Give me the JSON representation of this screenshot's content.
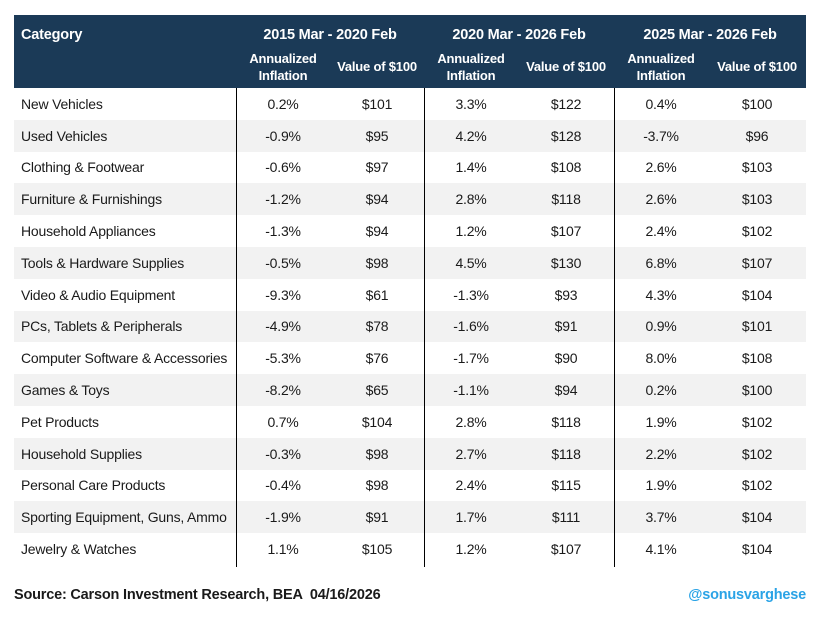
{
  "chart_data": {
    "type": "table",
    "header": {
      "category": "Category",
      "inflation_label": "Annualized Inflation",
      "value_label": "Value of $100"
    },
    "column_group_labels": [
      "2015 Mar - 2020 Feb",
      "2020 Mar - 2026 Feb",
      "2025 Mar - 2026 Feb"
    ],
    "sub_columns": [
      "Annualized Inflation",
      "Value of $100"
    ],
    "rows": [
      {
        "category": "New Vehicles",
        "values": [
          "0.2%",
          "$101",
          "3.3%",
          "$122",
          "0.4%",
          "$100"
        ]
      },
      {
        "category": "Used Vehicles",
        "values": [
          "-0.9%",
          "$95",
          "4.2%",
          "$128",
          "-3.7%",
          "$96"
        ]
      },
      {
        "category": "Clothing & Footwear",
        "values": [
          "-0.6%",
          "$97",
          "1.4%",
          "$108",
          "2.6%",
          "$103"
        ]
      },
      {
        "category": "Furniture & Furnishings",
        "values": [
          "-1.2%",
          "$94",
          "2.8%",
          "$118",
          "2.6%",
          "$103"
        ]
      },
      {
        "category": "Household Appliances",
        "values": [
          "-1.3%",
          "$94",
          "1.2%",
          "$107",
          "2.4%",
          "$102"
        ]
      },
      {
        "category": "Tools & Hardware Supplies",
        "values": [
          "-0.5%",
          "$98",
          "4.5%",
          "$130",
          "6.8%",
          "$107"
        ]
      },
      {
        "category": "Video & Audio Equipment",
        "values": [
          "-9.3%",
          "$61",
          "-1.3%",
          "$93",
          "4.3%",
          "$104"
        ]
      },
      {
        "category": "PCs, Tablets & Peripherals",
        "values": [
          "-4.9%",
          "$78",
          "-1.6%",
          "$91",
          "0.9%",
          "$101"
        ]
      },
      {
        "category": "Computer Software & Accessories",
        "values": [
          "-5.3%",
          "$76",
          "-1.7%",
          "$90",
          "8.0%",
          "$108"
        ]
      },
      {
        "category": "Games & Toys",
        "values": [
          "-8.2%",
          "$65",
          "-1.1%",
          "$94",
          "0.2%",
          "$100"
        ]
      },
      {
        "category": "Pet Products",
        "values": [
          "0.7%",
          "$104",
          "2.8%",
          "$118",
          "1.9%",
          "$102"
        ]
      },
      {
        "category": "Household Supplies",
        "values": [
          "-0.3%",
          "$98",
          "2.7%",
          "$118",
          "2.2%",
          "$102"
        ]
      },
      {
        "category": "Personal Care Products",
        "values": [
          "-0.4%",
          "$98",
          "2.4%",
          "$115",
          "1.9%",
          "$102"
        ]
      },
      {
        "category": "Sporting Equipment, Guns, Ammo",
        "values": [
          "-1.9%",
          "$91",
          "1.7%",
          "$111",
          "3.7%",
          "$104"
        ]
      },
      {
        "category": "Jewelry & Watches",
        "values": [
          "1.1%",
          "$105",
          "1.2%",
          "$107",
          "4.1%",
          "$104"
        ]
      }
    ]
  },
  "footer": {
    "source": "Source: Carson Investment Research, BEA  04/16/2026",
    "handle": "@sonusvarghese"
  },
  "colors": {
    "header_bg": "#1b3a57",
    "stripe": "#f2f2f2",
    "divider": "#000000",
    "handle": "#2aa3e6"
  }
}
